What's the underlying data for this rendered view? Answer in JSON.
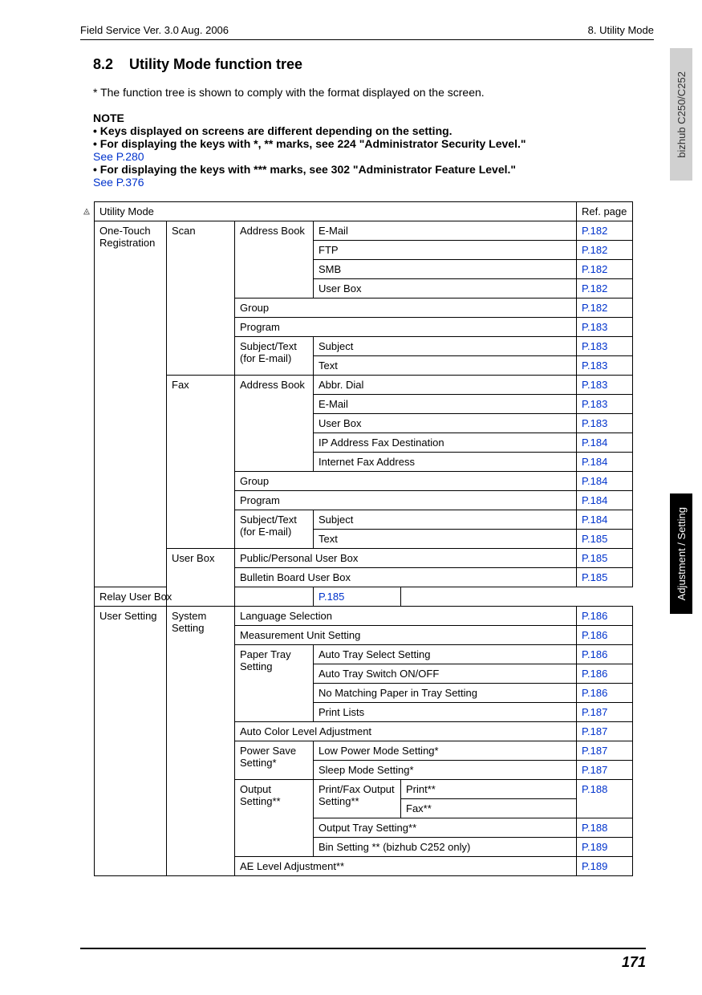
{
  "header": {
    "left": "Field Service Ver. 3.0 Aug. 2006",
    "right": "8. Utility Mode"
  },
  "section": {
    "number": "8.2",
    "title": "Utility Mode function tree"
  },
  "intro": "* The function tree is shown to comply with the format displayed on the screen.",
  "note": {
    "title": "NOTE",
    "b1": "• Keys displayed on screens are different depending on the setting.",
    "b2": "• For displaying the keys with *, ** marks, see 224 \"Administrator Security Level.\"",
    "l1": "See P.280",
    "b3": "• For displaying the keys with *** marks, see 302 \"Administrator Feature Level.\"",
    "l2": "See P.376"
  },
  "table": {
    "header_left": "Utility Mode",
    "header_right": "Ref. page",
    "c1_a": "One-Touch Registration",
    "c1_b": "User Setting",
    "c2_scan": "Scan",
    "c2_fax": "Fax",
    "c2_userbox": "User Box",
    "c2_system": "System Setting",
    "c3_addrbook": "Address Book",
    "c3_group": "Group",
    "c3_program": "Program",
    "c3_subjtext": "Subject/Text (for E-mail)",
    "c3_pubpers": "Public/Personal User Box",
    "c3_bulletin": "Bulletin Board User Box",
    "c3_relay": "Relay User Box",
    "c3_lang": "Language Selection",
    "c3_meas": "Measurement Unit Setting",
    "c3_papertray": "Paper Tray Setting",
    "c3_autocolor": "Auto Color Level Adjustment",
    "c3_powersave": "Power Save Setting*",
    "c3_output": "Output Setting**",
    "c3_aelevel": "AE Level Adjustment**",
    "c4_email": "E-Mail",
    "c4_ftp": "FTP",
    "c4_smb": "SMB",
    "c4_userbox": "User Box",
    "c4_subject": "Subject",
    "c4_text": "Text",
    "c4_abbr": "Abbr. Dial",
    "c4_ipfax": "IP Address Fax Destination",
    "c4_intfax": "Internet Fax Address",
    "c4_autotraysel": "Auto Tray Select Setting",
    "c4_autotraysw": "Auto Tray Switch ON/OFF",
    "c4_nomatch": "No Matching Paper in Tray Setting",
    "c4_printlists": "Print Lists",
    "c4_lowpower": "Low Power Mode Setting*",
    "c4_sleep": "Sleep Mode Setting*",
    "c4_printfaxout": "Print/Fax Output Setting**",
    "c4_outputtray": "Output Tray Setting**",
    "c4_binsetting": "Bin Setting ** (bizhub C252 only)",
    "c5_print": "Print**",
    "c5_fax": "Fax**",
    "refs": {
      "p182": "P.182",
      "p183": "P.183",
      "p184": "P.184",
      "p185": "P.185",
      "p186": "P.186",
      "p187": "P.187",
      "p188": "P.188",
      "p189": "P.189"
    }
  },
  "side": {
    "top": "bizhub C250/C252",
    "bottom": "Adjustment / Setting"
  },
  "footer": {
    "page": "171"
  },
  "marker": "2"
}
